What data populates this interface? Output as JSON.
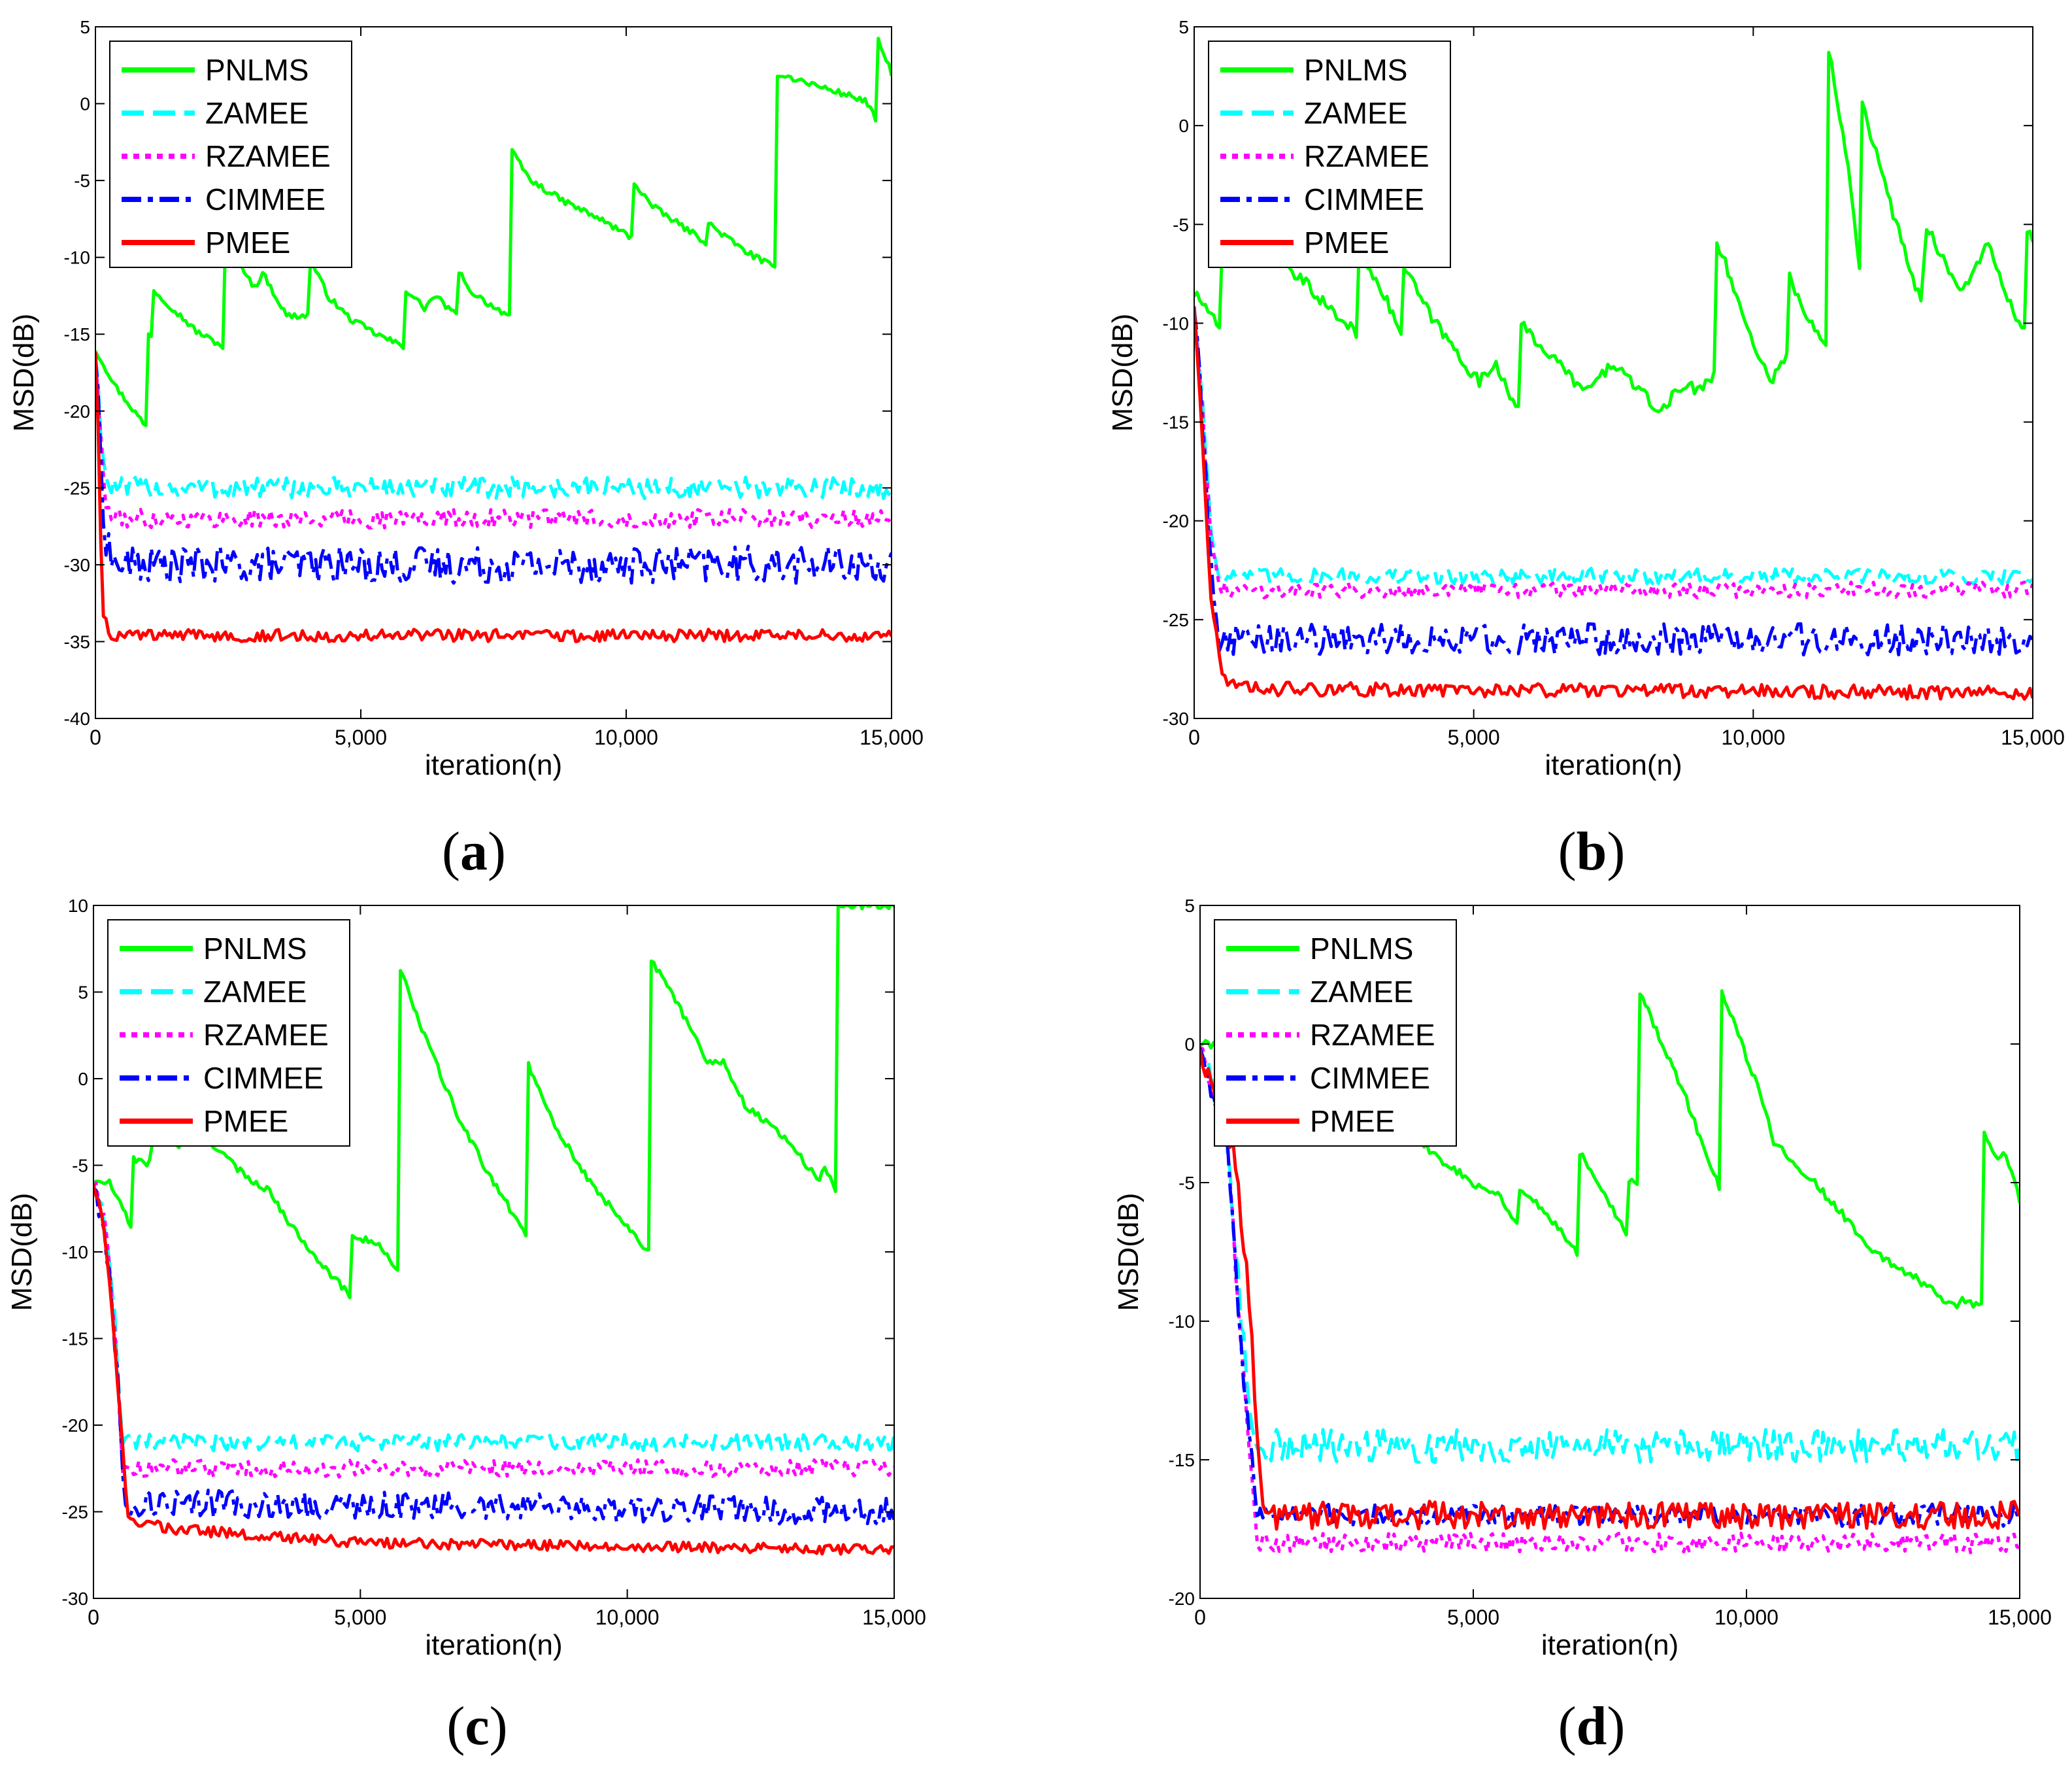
{
  "figure": {
    "panels": [
      {
        "id": "a",
        "caption_label": "a",
        "caption_open": "(",
        "caption_close": ")"
      },
      {
        "id": "b",
        "caption_label": "b",
        "caption_open": "(",
        "caption_close": ")"
      },
      {
        "id": "c",
        "caption_label": "c",
        "caption_open": "(",
        "caption_close": ")"
      },
      {
        "id": "d",
        "caption_label": "d",
        "caption_open": "(",
        "caption_close": ")"
      }
    ]
  },
  "legend_entries": [
    {
      "name": "PNLMS",
      "color": "#00ff00",
      "style": "solid"
    },
    {
      "name": "ZAMEE",
      "color": "#00ffff",
      "style": "dashed"
    },
    {
      "name": "RZAMEE",
      "color": "#ff00ff",
      "style": "dotted"
    },
    {
      "name": "CIMMEE",
      "color": "#0000ff",
      "style": "dashdot"
    },
    {
      "name": "PMEE",
      "color": "#ff0000",
      "style": "solid"
    }
  ],
  "chart_data": [
    {
      "panel": "a",
      "type": "line",
      "xlabel": "iteration(n)",
      "ylabel": "MSD(dB)",
      "xlim": [
        0,
        15000
      ],
      "ylim": [
        -40,
        5
      ],
      "xticks": [
        0,
        5000,
        10000,
        15000
      ],
      "xtick_labels": [
        "0",
        "5,000",
        "10,000",
        "15,000"
      ],
      "yticks": [
        -40,
        -35,
        -30,
        -25,
        -20,
        -15,
        -10,
        -5,
        0,
        5
      ],
      "ytick_labels": [
        "-40",
        "-35",
        "-30",
        "-25",
        "-20",
        "-15",
        "-10",
        "-5",
        "0",
        "5"
      ],
      "legend_position": "top-left",
      "series": [
        {
          "name": "PNLMS",
          "color": "#00ff00",
          "style": "solid",
          "noise": 0.2,
          "x": [
            0,
            400,
            950,
            960,
            1050,
            1060,
            1900,
            2400,
            2420,
            2500,
            3000,
            3150,
            3600,
            4000,
            4020,
            4400,
            4800,
            5300,
            5800,
            5820,
            6200,
            6400,
            6800,
            6820,
            7000,
            7400,
            7800,
            7820,
            8200,
            8800,
            9500,
            10100,
            10120,
            10500,
            11500,
            11550,
            12200,
            12800,
            12820,
            14500,
            14700,
            14720,
            15000
          ],
          "y": [
            -16,
            -18.5,
            -21,
            -15,
            -15,
            -12,
            -14.8,
            -15.8,
            -9,
            -9,
            -12,
            -11,
            -13.8,
            -13.8,
            -10,
            -12.6,
            -14,
            -15,
            -15.8,
            -12,
            -13.3,
            -12.5,
            -13.8,
            -10.6,
            -12,
            -13,
            -13.8,
            -3,
            -5,
            -6.3,
            -7.5,
            -8.7,
            -5,
            -6.7,
            -9,
            -7.8,
            -9.5,
            -10.7,
            2,
            0.2,
            -1,
            4.3,
            2
          ]
        },
        {
          "name": "ZAMEE",
          "color": "#00ffff",
          "style": "dashed",
          "noise": 0.7,
          "x": [
            0,
            80,
            180,
            350,
            15000
          ],
          "y": [
            -16,
            -20,
            -24.5,
            -25,
            -25
          ]
        },
        {
          "name": "RZAMEE",
          "color": "#ff00ff",
          "style": "dotted",
          "noise": 0.6,
          "x": [
            0,
            80,
            180,
            350,
            15000
          ],
          "y": [
            -16,
            -21,
            -26,
            -27,
            -27
          ]
        },
        {
          "name": "CIMMEE",
          "color": "#0000ff",
          "style": "dashdot",
          "noise": 1.2,
          "x": [
            0,
            80,
            180,
            350,
            15000
          ],
          "y": [
            -16,
            -22,
            -28,
            -30,
            -30
          ]
        },
        {
          "name": "PMEE",
          "color": "#ff0000",
          "style": "solid",
          "noise": 0.4,
          "x": [
            0,
            60,
            130,
            300,
            15000
          ],
          "y": [
            -16,
            -22,
            -33,
            -34.6,
            -34.6
          ]
        }
      ]
    },
    {
      "panel": "b",
      "type": "line",
      "xlabel": "iteration(n)",
      "ylabel": "MSD(dB)",
      "xlim": [
        0,
        15000
      ],
      "ylim": [
        -30,
        5
      ],
      "xticks": [
        0,
        5000,
        10000,
        15000
      ],
      "xtick_labels": [
        "0",
        "5,000",
        "10,000",
        "15,000"
      ],
      "yticks": [
        -30,
        -25,
        -20,
        -15,
        -10,
        -5,
        0,
        5
      ],
      "ytick_labels": [
        "-30",
        "-25",
        "-20",
        "-15",
        "-10",
        "-5",
        "0",
        "5"
      ],
      "legend_position": "top-left",
      "series": [
        {
          "name": "PNLMS",
          "color": "#00ff00",
          "style": "solid",
          "noise": 0.3,
          "x": [
            0,
            300,
            450,
            500,
            1000,
            1500,
            2000,
            2500,
            2900,
            2920,
            3300,
            3700,
            3720,
            4200,
            4700,
            5100,
            5400,
            5800,
            5820,
            6500,
            7000,
            7500,
            8000,
            8300,
            8800,
            9000,
            9300,
            9320,
            9800,
            10300,
            10600,
            10620,
            11000,
            11300,
            11320,
            11700,
            11900,
            11920,
            12400,
            13000,
            13100,
            13700,
            14200,
            14500,
            14850,
            14870,
            15000
          ],
          "y": [
            -8.5,
            -9.5,
            -10.5,
            -6.5,
            -6,
            -7,
            -8,
            -9.5,
            -10.5,
            -6,
            -8,
            -10.5,
            -7,
            -9.5,
            -11.5,
            -13,
            -12,
            -14.5,
            -10,
            -12,
            -13.5,
            -12,
            -13.5,
            -14.5,
            -13,
            -13.5,
            -12.5,
            -5.5,
            -9.5,
            -13,
            -11.5,
            -7.5,
            -10,
            -11,
            4.5,
            -2,
            -7,
            1.5,
            -3.5,
            -9,
            -5,
            -8.5,
            -6,
            -8.5,
            -10.5,
            -5,
            -6
          ]
        },
        {
          "name": "ZAMEE",
          "color": "#00ffff",
          "style": "dashed",
          "noise": 0.4,
          "x": [
            0,
            150,
            300,
            450,
            15000
          ],
          "y": [
            -9,
            -14,
            -20.5,
            -22.8,
            -22.8
          ]
        },
        {
          "name": "RZAMEE",
          "color": "#ff00ff",
          "style": "dotted",
          "noise": 0.4,
          "x": [
            0,
            150,
            300,
            450,
            15000
          ],
          "y": [
            -9,
            -14.5,
            -21,
            -23.5,
            -23.5
          ]
        },
        {
          "name": "CIMMEE",
          "color": "#0000ff",
          "style": "dashdot",
          "noise": 0.8,
          "x": [
            0,
            150,
            300,
            450,
            15000
          ],
          "y": [
            -9,
            -15,
            -22,
            -26,
            -26
          ]
        },
        {
          "name": "PMEE",
          "color": "#ff0000",
          "style": "solid",
          "noise": 0.35,
          "x": [
            0,
            150,
            300,
            500,
            900,
            15000
          ],
          "y": [
            -9,
            -16,
            -24,
            -27.8,
            -28.5,
            -28.7
          ]
        }
      ]
    },
    {
      "panel": "c",
      "type": "line",
      "xlabel": "iteration(n)",
      "ylabel": "MSD(dB)",
      "xlim": [
        0,
        15000
      ],
      "ylim": [
        -30,
        10
      ],
      "xticks": [
        0,
        5000,
        10000,
        15000
      ],
      "xtick_labels": [
        "0",
        "5,000",
        "10,000",
        "15,000"
      ],
      "yticks": [
        -30,
        -25,
        -20,
        -15,
        -10,
        -5,
        0,
        5,
        10
      ],
      "ytick_labels": [
        "-30",
        "-25",
        "-20",
        "-15",
        "-10",
        "-5",
        "0",
        "5",
        "10"
      ],
      "legend_position": "top-left",
      "series": [
        {
          "name": "PNLMS",
          "color": "#00ff00",
          "style": "solid",
          "noise": 0.2,
          "x": [
            0,
            300,
            700,
            720,
            1000,
            1200,
            1600,
            1900,
            2300,
            2800,
            3300,
            3700,
            4100,
            4500,
            4800,
            4820,
            5300,
            5700,
            5720,
            6200,
            6800,
            7400,
            8100,
            8120,
            8700,
            9300,
            10000,
            10400,
            10420,
            11000,
            11500,
            11800,
            12200,
            13000,
            13600,
            13700,
            13900,
            13920,
            15000
          ],
          "y": [
            -6,
            -6,
            -8.5,
            -4.5,
            -5,
            -3,
            -4,
            -2.5,
            -4,
            -5.5,
            -6.5,
            -8.5,
            -10,
            -11.5,
            -12.5,
            -9,
            -9.5,
            -11,
            6.5,
            2.5,
            -2,
            -5.5,
            -9,
            1,
            -3,
            -6,
            -8.5,
            -10,
            7,
            4,
            1,
            1,
            -1.5,
            -3.5,
            -6,
            -5,
            -6.5,
            10,
            10
          ]
        },
        {
          "name": "ZAMEE",
          "color": "#00ffff",
          "style": "dashed",
          "noise": 0.5,
          "x": [
            0,
            200,
            400,
            550,
            15000
          ],
          "y": [
            -6,
            -8,
            -14,
            -21,
            -21
          ]
        },
        {
          "name": "RZAMEE",
          "color": "#ff00ff",
          "style": "dotted",
          "noise": 0.5,
          "x": [
            0,
            200,
            400,
            550,
            15000
          ],
          "y": [
            -6,
            -8,
            -14.5,
            -22.5,
            -22.5
          ]
        },
        {
          "name": "CIMMEE",
          "color": "#0000ff",
          "style": "dashdot",
          "noise": 0.8,
          "x": [
            0,
            200,
            400,
            600,
            15000
          ],
          "y": [
            -6,
            -8.5,
            -15,
            -24.5,
            -25
          ]
        },
        {
          "name": "PMEE",
          "color": "#ff0000",
          "style": "solid",
          "noise": 0.3,
          "x": [
            0,
            200,
            400,
            650,
            1500,
            5000,
            15000
          ],
          "y": [
            -6,
            -8.5,
            -15.5,
            -25.5,
            -26,
            -26.8,
            -27.2
          ]
        }
      ]
    },
    {
      "panel": "d",
      "type": "line",
      "xlabel": "iteration(n)",
      "ylabel": "MSD(dB)",
      "xlim": [
        0,
        15000
      ],
      "ylim": [
        -20,
        5
      ],
      "xticks": [
        0,
        5000,
        10000,
        15000
      ],
      "xtick_labels": [
        "0",
        "5,000",
        "10,000",
        "15,000"
      ],
      "yticks": [
        -20,
        -15,
        -10,
        -5,
        0,
        5
      ],
      "ytick_labels": [
        "-20",
        "-15",
        "-10",
        "-5",
        "0",
        "5"
      ],
      "legend_position": "top-left",
      "series": [
        {
          "name": "PNLMS",
          "color": "#00ff00",
          "style": "solid",
          "noise": 0.15,
          "x": [
            0,
            500,
            1000,
            1500,
            2000,
            2500,
            3000,
            3500,
            4000,
            4500,
            5000,
            5500,
            5800,
            5820,
            6300,
            6900,
            6920,
            7300,
            7800,
            7820,
            8000,
            8020,
            8800,
            9500,
            9520,
            10200,
            10500,
            10520,
            11000,
            11700,
            12300,
            13000,
            13500,
            13800,
            14000,
            14300,
            14320,
            14600,
            14700,
            15000
          ],
          "y": [
            0,
            0,
            -0.5,
            -1,
            -1.5,
            -2,
            -2.5,
            -3,
            -3.5,
            -4.3,
            -5,
            -5.5,
            -6.5,
            -5.2,
            -6,
            -7.5,
            -3.8,
            -5,
            -6.8,
            -5,
            -5,
            2,
            -1.5,
            -5.2,
            2,
            -1.5,
            -3.5,
            -3.5,
            -4.5,
            -6,
            -7.5,
            -8.3,
            -9,
            -9.5,
            -9.2,
            -9.5,
            -3,
            -4.2,
            -3.8,
            -5.6
          ]
        },
        {
          "name": "ZAMEE",
          "color": "#00ffff",
          "style": "dashed",
          "noise": 0.6,
          "x": [
            0,
            200,
            500,
            750,
            1000,
            15000
          ],
          "y": [
            0,
            -1.5,
            -3.5,
            -10,
            -14.5,
            -14.5
          ]
        },
        {
          "name": "RZAMEE",
          "color": "#ff00ff",
          "style": "dotted",
          "noise": 0.35,
          "x": [
            0,
            200,
            500,
            750,
            1050,
            15000
          ],
          "y": [
            0,
            -1.5,
            -3.5,
            -11,
            -18,
            -18
          ]
        },
        {
          "name": "CIMMEE",
          "color": "#0000ff",
          "style": "dashdot",
          "noise": 0.4,
          "x": [
            0,
            200,
            500,
            750,
            1050,
            15000
          ],
          "y": [
            0,
            -1.5,
            -3.5,
            -11,
            -17,
            -17
          ]
        },
        {
          "name": "PMEE",
          "color": "#ff0000",
          "style": "solid",
          "noise": 0.5,
          "x": [
            0,
            200,
            600,
            850,
            1150,
            15000
          ],
          "y": [
            0,
            -1.5,
            -3.5,
            -8,
            -17,
            -17
          ]
        }
      ]
    }
  ]
}
